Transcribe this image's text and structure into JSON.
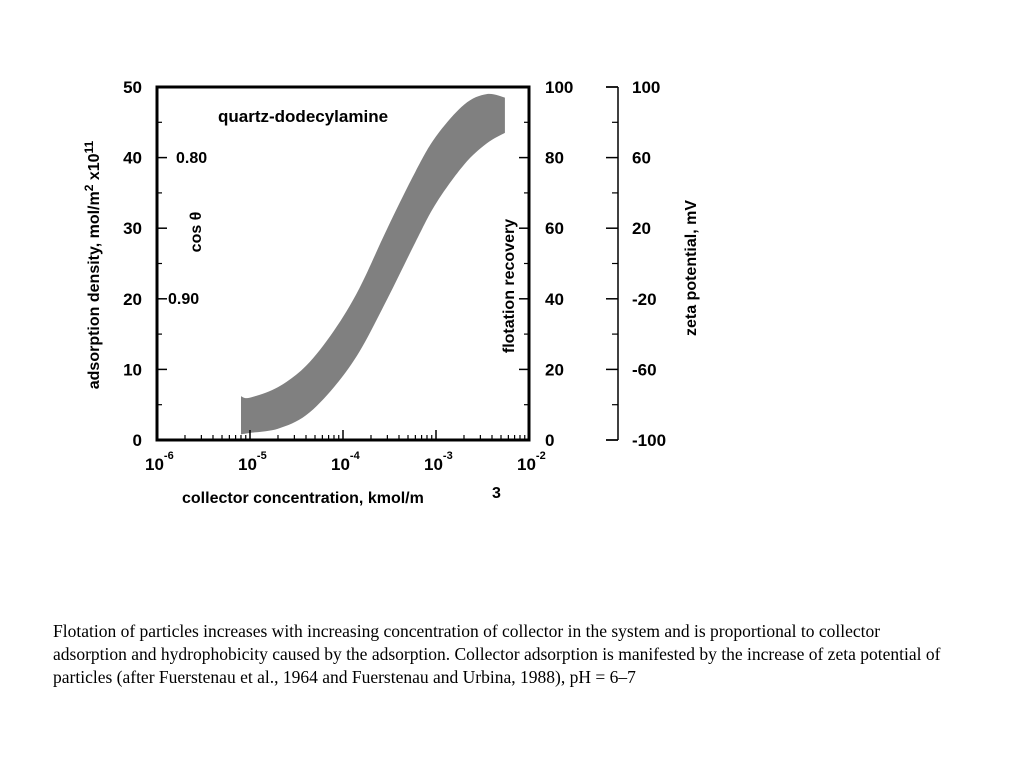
{
  "chart_data": {
    "type": "area",
    "title": "quartz-dodecylamine",
    "xlabel": "collector concentration, kmol/m",
    "xlabel_superscript": "3",
    "x_scale": "log",
    "xlim": [
      1e-06,
      0.01
    ],
    "x_ticks": [
      {
        "base": "10",
        "exp": "-6"
      },
      {
        "base": "10",
        "exp": "-5"
      },
      {
        "base": "10",
        "exp": "-4"
      },
      {
        "base": "10",
        "exp": "-3"
      },
      {
        "base": "10",
        "exp": "-2"
      }
    ],
    "y_axes": [
      {
        "label": "adsorption density, mol/m",
        "label_superscript_1": "2",
        "label_suffix": " x10",
        "label_superscript_2": "11",
        "lim": [
          0,
          50
        ],
        "ticks": [
          "0",
          "10",
          "20",
          "30",
          "40",
          "50"
        ]
      },
      {
        "label": "flotation recovery",
        "lim": [
          0,
          100
        ],
        "ticks": [
          "0",
          "20",
          "40",
          "60",
          "80",
          "100"
        ]
      },
      {
        "label": "zeta potential, mV",
        "lim": [
          -100,
          100
        ],
        "ticks": [
          "-100",
          "-60",
          "-20",
          "20",
          "60",
          "100"
        ]
      }
    ],
    "cos_theta": {
      "label": "cos θ",
      "values": [
        "0.80",
        "0.90"
      ]
    },
    "band": {
      "color": "#808080",
      "x": [
        8e-06,
        1e-05,
        2e-05,
        4e-05,
        8e-05,
        0.00015,
        0.0003,
        0.0006,
        0.001,
        0.002,
        0.0035,
        0.0055
      ],
      "upper": [
        6.2,
        6.0,
        7.5,
        10.5,
        15.5,
        21.5,
        30.0,
        38.0,
        43.0,
        47.5,
        49.0,
        48.5
      ],
      "lower": [
        0.8,
        1.0,
        1.6,
        3.5,
        7.5,
        12.5,
        20.0,
        28.0,
        33.5,
        39.0,
        42.0,
        43.5
      ]
    }
  },
  "caption": "Flotation of particles increases with increasing concentration of collector in the system and is proportional to collector adsorption and hydrophobicity caused by the adsorption. Collector adsorption is manifested by the increase of zeta potential of particles (after Fuerstenau et al., 1964 and Fuerstenau and Urbina, 1988), pH = 6–7"
}
